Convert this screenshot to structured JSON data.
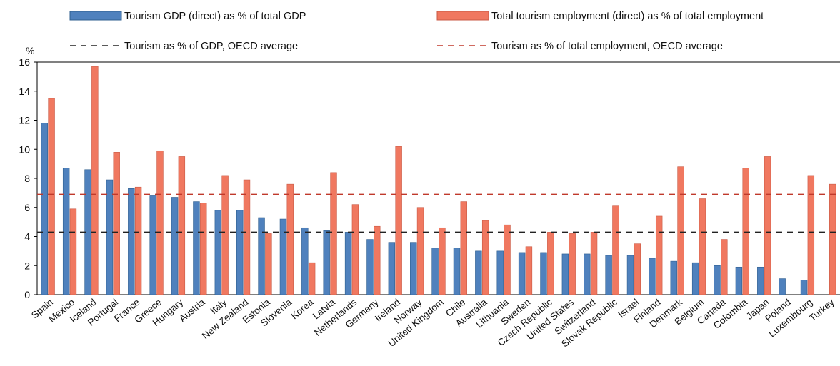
{
  "chart_data": {
    "type": "bar",
    "ylabel": "%",
    "ylim": [
      0,
      16
    ],
    "yticks": [
      "0",
      "2",
      "4",
      "6",
      "8",
      "10",
      "12",
      "14",
      "16"
    ],
    "categories": [
      "Spain",
      "Mexico",
      "Iceland",
      "Portugal",
      "France",
      "Greece",
      "Hungary",
      "Austria",
      "Italy",
      "New Zealand",
      "Estonia",
      "Slovenia",
      "Korea",
      "Latvia",
      "Netherlands",
      "Germany",
      "Ireland",
      "Norway",
      "United Kingdom",
      "Chile",
      "Australia",
      "Lithuania",
      "Sweden",
      "Czech Republic",
      "United States",
      "Switzerland",
      "Slovak Republic",
      "Israel",
      "Finland",
      "Denmark",
      "Belgium",
      "Canada",
      "Colombia",
      "Japan",
      "Poland",
      "Luxembourg",
      "Turkey"
    ],
    "series": [
      {
        "name": "Tourism GDP (direct) as % of total GDP",
        "color": "#4f81bd",
        "values": [
          11.8,
          8.7,
          8.6,
          7.9,
          7.3,
          6.8,
          6.7,
          6.4,
          5.8,
          5.8,
          5.3,
          5.2,
          4.6,
          4.4,
          4.3,
          3.8,
          3.6,
          3.6,
          3.2,
          3.2,
          3.0,
          3.0,
          2.9,
          2.9,
          2.8,
          2.8,
          2.7,
          2.7,
          2.5,
          2.3,
          2.2,
          2.0,
          1.9,
          1.9,
          1.1,
          1.0,
          null
        ]
      },
      {
        "name": "Total tourism employment (direct) as % of total employment",
        "color": "#f07860",
        "values": [
          13.5,
          5.9,
          15.7,
          9.8,
          7.4,
          9.9,
          9.5,
          6.3,
          8.2,
          7.9,
          4.2,
          7.6,
          2.2,
          8.4,
          6.2,
          4.7,
          10.2,
          6.0,
          4.6,
          6.4,
          5.1,
          4.8,
          3.3,
          4.3,
          4.2,
          4.3,
          6.1,
          3.5,
          5.4,
          8.8,
          6.6,
          3.8,
          8.7,
          9.5,
          null,
          8.2,
          7.6
        ]
      }
    ],
    "reference_lines": [
      {
        "name": "Tourism as % of GDP, OECD average",
        "value": 4.3,
        "color": "#222222",
        "style": "dashed"
      },
      {
        "name": "Tourism as % of total employment, OECD average",
        "value": 6.9,
        "color": "#c0392b",
        "style": "dashed"
      }
    ],
    "legend_placement": "top",
    "grid": false
  }
}
